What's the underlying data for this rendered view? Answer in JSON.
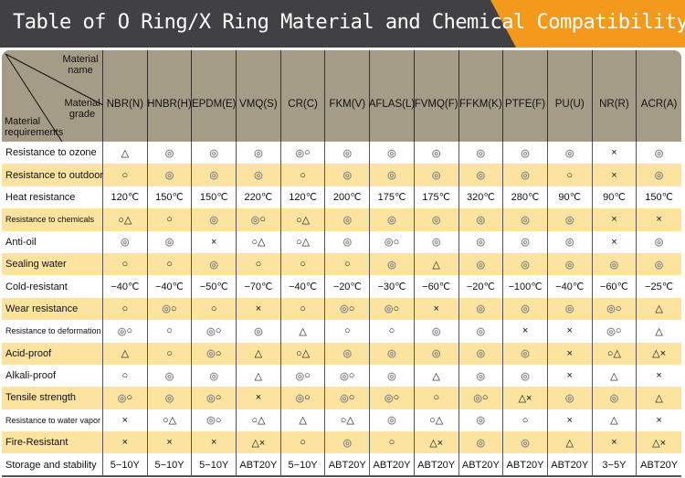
{
  "title": {
    "part1": "Table of O Ring/X Ring Material and Chemical ",
    "part2": "Compatibility"
  },
  "colors": {
    "title_bg": "#414042",
    "accent": "#f39a1c",
    "header_bg": "#a59c88",
    "alt_row": "#fde3a0"
  },
  "corner": {
    "name": "Material name",
    "grade": "Material grade",
    "requirements": "Material requirements"
  },
  "columns": [
    "NBR(N)",
    "HNBR(H)",
    "EPDM(E)",
    "VMQ(S)",
    "CR(C)",
    "FKM(V)",
    "AFLAS(L)",
    "FVMQ(F)",
    "FFKM(K)",
    "PTFE(F)",
    "PU(U)",
    "NR(R)",
    "ACR(A)"
  ],
  "rows": [
    {
      "label": "Resistance to ozone",
      "values": [
        "△",
        "◎",
        "◎",
        "◎",
        "◎○",
        "◎",
        "◎",
        "◎",
        "◎",
        "◎",
        "◎",
        "×",
        "◎"
      ]
    },
    {
      "label": "Resistance to outdoor",
      "values": [
        "○",
        "◎",
        "◎",
        "◎",
        "○",
        "◎",
        "◎",
        "◎",
        "◎",
        "◎",
        "○",
        "×",
        "◎"
      ]
    },
    {
      "label": "Heat resistance",
      "values": [
        "120℃",
        "150℃",
        "150℃",
        "220℃",
        "120℃",
        "200℃",
        "175℃",
        "175℃",
        "320℃",
        "280℃",
        "90℃",
        "90℃",
        "150℃"
      ]
    },
    {
      "label": "Resistance to chemicals",
      "values": [
        "○△",
        "○",
        "◎",
        "◎○",
        "○△",
        "◎",
        "◎",
        "◎",
        "◎",
        "◎",
        "◎",
        "×",
        "×"
      ]
    },
    {
      "label": "Anti-oil",
      "values": [
        "◎",
        "◎",
        "×",
        "○△",
        "○△",
        "◎",
        "◎○",
        "◎",
        "◎",
        "◎",
        "◎",
        "×",
        "◎"
      ]
    },
    {
      "label": "Sealing water",
      "values": [
        "○",
        "○",
        "◎",
        "○",
        "○",
        "○",
        "◎",
        "△",
        "◎",
        "◎",
        "◎",
        "◎",
        "◎"
      ]
    },
    {
      "label": "Cold-resistant",
      "values": [
        "−40℃",
        "−40℃",
        "−50℃",
        "−70℃",
        "−40℃",
        "−20℃",
        "−30℃",
        "−60℃",
        "−20℃",
        "−100℃",
        "−40℃",
        "−60℃",
        "−25℃"
      ]
    },
    {
      "label": "Wear resistance",
      "values": [
        "○",
        "◎○",
        "○",
        "×",
        "○",
        "◎○",
        "◎○",
        "×",
        "◎",
        "◎",
        "◎",
        "◎○",
        "△"
      ]
    },
    {
      "label": "Resistance to deformation",
      "values": [
        "◎○",
        "○",
        "◎○",
        "◎",
        "△",
        "○",
        "○",
        "◎",
        "◎",
        "×",
        "×",
        "◎○",
        "△"
      ]
    },
    {
      "label": "Acid-proof",
      "values": [
        "△",
        "○",
        "◎○",
        "△",
        "○△",
        "◎",
        "◎",
        "◎",
        "◎",
        "◎",
        "×",
        "○△",
        "△×"
      ]
    },
    {
      "label": "Alkali-proof",
      "values": [
        "○",
        "◎",
        "◎",
        "△",
        "◎○",
        "◎○",
        "◎",
        "△",
        "◎",
        "◎",
        "×",
        "△",
        "×"
      ]
    },
    {
      "label": "Tensile strength",
      "values": [
        "◎○",
        "◎",
        "◎○",
        "×",
        "◎○",
        "◎○",
        "◎○",
        "○",
        "◎○",
        "△×",
        "◎",
        "◎",
        "△"
      ]
    },
    {
      "label": "Resistance to water vapor",
      "values": [
        "×",
        "○△",
        "◎○",
        "○△",
        "△",
        "○△",
        "◎",
        "○△",
        "◎",
        "○",
        "×",
        "△",
        "×"
      ]
    },
    {
      "label": "Fire-Resistant",
      "values": [
        "×",
        "×",
        "×",
        "△×",
        "○",
        "◎",
        "○",
        "△×",
        "◎",
        "◎",
        "△",
        "×",
        "△×"
      ]
    },
    {
      "label": "Storage and stability",
      "values": [
        "5−10Y",
        "5−10Y",
        "5−10Y",
        "ABT20Y",
        "5−10Y",
        "ABT20Y",
        "ABT20Y",
        "ABT20Y",
        "ABT20Y",
        "ABT20Y",
        "ABT20Y",
        "3−5Y",
        "ABT20Y"
      ]
    }
  ]
}
